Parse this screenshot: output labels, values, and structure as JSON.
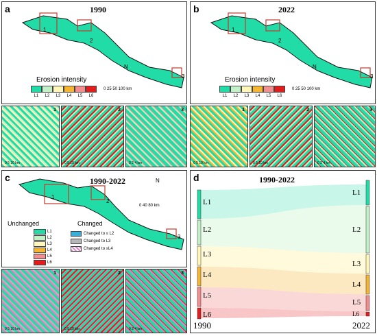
{
  "panels": {
    "a": {
      "label": "a",
      "year": "1990",
      "legend_title": "Erosion intensity",
      "scale": "0 25 50 100 km",
      "insets": [
        "1",
        "2",
        "3"
      ],
      "inset_scales": [
        "0 5 10 km",
        "0 5 10 km",
        "0 2 4 km"
      ]
    },
    "b": {
      "label": "b",
      "year": "2022",
      "legend_title": "Erosion intensity",
      "scale": "0 25 50 100 km",
      "insets": [
        "1",
        "2",
        "3"
      ],
      "inset_scales": [
        "0 5 10 km",
        "0 5 10 km",
        "0 2 4 km"
      ]
    },
    "c": {
      "label": "c",
      "year": "1990-2022",
      "scale": "0 40 80 km",
      "unchanged_title": "Unchanged",
      "changed_title": "Changed",
      "changed_items": [
        "Changed to ≤ L2",
        "Changed to L3",
        "Changed to ≥L4"
      ],
      "insets": [
        "1",
        "2",
        "3"
      ],
      "inset_scales": [
        "0 5 10 km",
        "0 5 10 km",
        "0 2 4 km"
      ]
    },
    "d": {
      "label": "d",
      "title": "1990-2022",
      "left_year": "1990",
      "right_year": "2022"
    }
  },
  "map_labels": [
    "1",
    "2",
    "3"
  ],
  "north": "N",
  "levels": [
    "L1",
    "L2",
    "L3",
    "L4",
    "L5",
    "L6"
  ],
  "colors": {
    "L1": "#22dca8",
    "L2": "#c3f1c7",
    "L3": "#fff6b8",
    "L4": "#f5b533",
    "L5": "#f38e8e",
    "L6": "#e21d1d",
    "changed_le_L2": "#3aaed8",
    "changed_L3": "#b7b7b7",
    "changed_ge_L4": "#e080c8"
  }
}
